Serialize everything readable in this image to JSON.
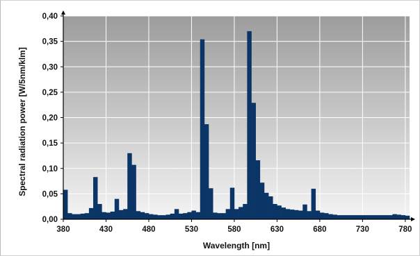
{
  "chart_data": {
    "type": "bar",
    "title": "",
    "xlabel": "Wavelength [nm]",
    "ylabel": "Spectral radiation power [W/5nm/klm]",
    "xlim": [
      380,
      785
    ],
    "ylim": [
      0,
      0.4
    ],
    "x_ticks": [
      380,
      430,
      480,
      530,
      580,
      630,
      680,
      730,
      780
    ],
    "x_tick_labels": [
      "380",
      "430",
      "480",
      "530",
      "580",
      "630",
      "680",
      "730",
      "780"
    ],
    "y_ticks": [
      0,
      0.05,
      0.1,
      0.15,
      0.2,
      0.25,
      0.3,
      0.35,
      0.4
    ],
    "y_tick_labels": [
      "0,00",
      "0,05",
      "0,10",
      "0,15",
      "0,20",
      "0,25",
      "0,30",
      "0,35",
      "0,40"
    ],
    "bin_width": 5,
    "grid": true,
    "colors": {
      "bar": "#0b3566",
      "plot_bg_top": "#9c9c9c",
      "plot_bg_bottom": "#f4f4f4",
      "grid": "#ffffff"
    },
    "x": [
      380,
      385,
      390,
      395,
      400,
      405,
      410,
      415,
      420,
      425,
      430,
      435,
      440,
      445,
      450,
      455,
      460,
      465,
      470,
      475,
      480,
      485,
      490,
      495,
      500,
      505,
      510,
      515,
      520,
      525,
      530,
      535,
      540,
      545,
      550,
      555,
      560,
      565,
      570,
      575,
      580,
      585,
      590,
      595,
      600,
      605,
      610,
      615,
      620,
      625,
      630,
      635,
      640,
      645,
      650,
      655,
      660,
      665,
      670,
      675,
      680,
      685,
      690,
      695,
      700,
      705,
      710,
      715,
      720,
      725,
      730,
      735,
      740,
      745,
      750,
      755,
      760,
      765,
      770,
      775,
      780
    ],
    "values": [
      0.058,
      0.012,
      0.01,
      0.01,
      0.011,
      0.012,
      0.022,
      0.083,
      0.03,
      0.014,
      0.013,
      0.015,
      0.04,
      0.018,
      0.02,
      0.13,
      0.107,
      0.016,
      0.014,
      0.012,
      0.01,
      0.009,
      0.008,
      0.008,
      0.009,
      0.011,
      0.02,
      0.011,
      0.012,
      0.014,
      0.017,
      0.014,
      0.354,
      0.187,
      0.061,
      0.013,
      0.012,
      0.012,
      0.02,
      0.062,
      0.02,
      0.024,
      0.03,
      0.37,
      0.229,
      0.116,
      0.072,
      0.052,
      0.045,
      0.03,
      0.027,
      0.023,
      0.02,
      0.019,
      0.018,
      0.017,
      0.029,
      0.016,
      0.06,
      0.017,
      0.013,
      0.012,
      0.01,
      0.009,
      0.008,
      0.008,
      0.008,
      0.008,
      0.008,
      0.008,
      0.008,
      0.008,
      0.008,
      0.008,
      0.008,
      0.008,
      0.008,
      0.01,
      0.009,
      0.008,
      0.007
    ]
  }
}
